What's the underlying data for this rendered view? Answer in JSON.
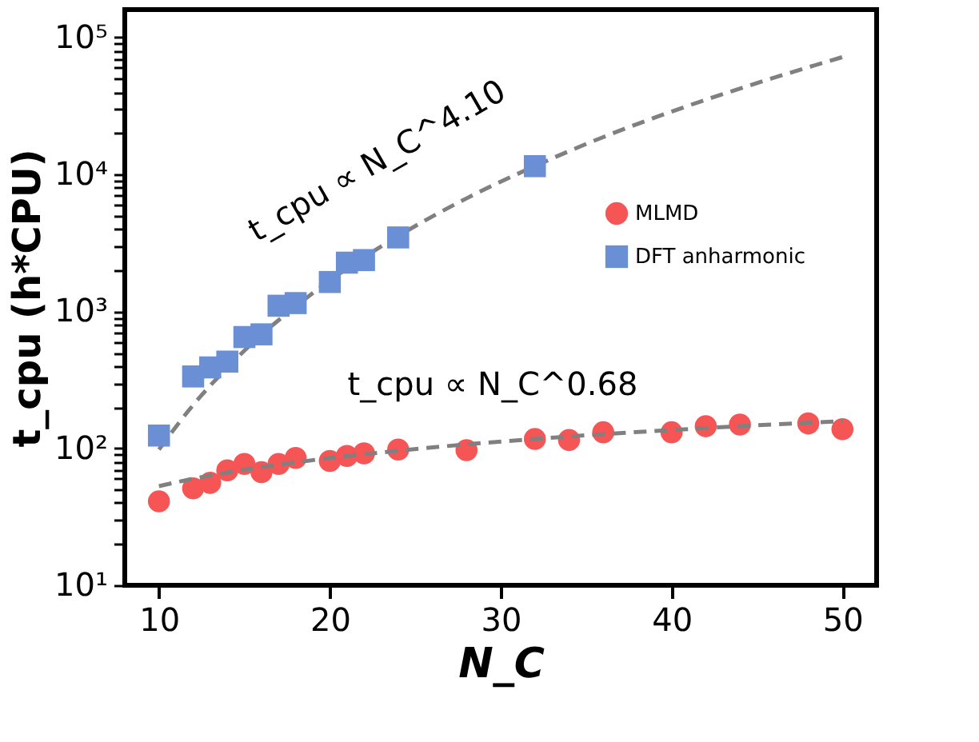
{
  "chart_data": {
    "type": "scatter",
    "xlabel": "N_C",
    "ylabel": "t_cpu (h*CPU)",
    "xlim": [
      8,
      52
    ],
    "xticks": [
      10,
      20,
      30,
      40,
      50
    ],
    "ylim": [
      10,
      160000
    ],
    "log": true,
    "yticks": [
      {
        "value": 10,
        "label": "10¹"
      },
      {
        "value": 20,
        "label": null
      },
      {
        "value": 30,
        "label": null
      },
      {
        "value": 40,
        "label": null
      },
      {
        "value": 50,
        "label": null
      },
      {
        "value": 60,
        "label": null
      },
      {
        "value": 70,
        "label": null
      },
      {
        "value": 80,
        "label": null
      },
      {
        "value": 90,
        "label": null
      },
      {
        "value": 100,
        "label": "10²"
      },
      {
        "value": 200,
        "label": null
      },
      {
        "value": 300,
        "label": null
      },
      {
        "value": 400,
        "label": null
      },
      {
        "value": 500,
        "label": null
      },
      {
        "value": 600,
        "label": null
      },
      {
        "value": 700,
        "label": null
      },
      {
        "value": 800,
        "label": null
      },
      {
        "value": 900,
        "label": null
      },
      {
        "value": 1000,
        "label": "10³"
      },
      {
        "value": 2000,
        "label": null
      },
      {
        "value": 3000,
        "label": null
      },
      {
        "value": 4000,
        "label": null
      },
      {
        "value": 5000,
        "label": null
      },
      {
        "value": 6000,
        "label": null
      },
      {
        "value": 7000,
        "label": null
      },
      {
        "value": 8000,
        "label": null
      },
      {
        "value": 9000,
        "label": null
      },
      {
        "value": 10000,
        "label": "10⁴"
      },
      {
        "value": 20000,
        "label": null
      },
      {
        "value": 30000,
        "label": null
      },
      {
        "value": 40000,
        "label": null
      },
      {
        "value": 50000,
        "label": null
      },
      {
        "value": 60000,
        "label": null
      },
      {
        "value": 70000,
        "label": null
      },
      {
        "value": 80000,
        "label": null
      },
      {
        "value": 90000,
        "label": null
      },
      {
        "value": 100000,
        "label": "10⁵"
      }
    ],
    "grid": false,
    "legend": "right",
    "series": [
      {
        "name": "MLMD",
        "marker": "circle",
        "color": "#f65555",
        "x": [
          10,
          12,
          13,
          14,
          15,
          16,
          17,
          18,
          20,
          21,
          22,
          24,
          28,
          32,
          34,
          36,
          40,
          42,
          44,
          48,
          50
        ],
        "values": [
          41,
          51,
          56,
          69,
          77,
          67,
          77,
          85,
          81,
          88,
          92,
          98,
          97,
          117,
          115,
          131,
          131,
          145,
          149,
          152,
          138
        ]
      },
      {
        "name": "DFT anharmonic",
        "marker": "square",
        "color": "#6a8fd5",
        "x": [
          10,
          12,
          13,
          14,
          15,
          16,
          17,
          18,
          20,
          21,
          22,
          24,
          32
        ],
        "values": [
          124,
          335,
          390,
          430,
          650,
          680,
          1100,
          1150,
          1640,
          2270,
          2370,
          3470,
          11500
        ]
      },
      {
        "type": "line",
        "line_style": "dashed",
        "color": "#808080",
        "x": [
          10,
          12,
          14,
          16,
          18,
          20,
          24,
          28,
          32,
          36,
          40,
          45,
          50
        ],
        "values": [
          98,
          207,
          389,
          674,
          1088,
          1681,
          3550,
          6690,
          11520,
          18750,
          28800,
          46500,
          72000
        ]
      },
      {
        "type": "line",
        "line_style": "dashed",
        "color": "#808080",
        "x": [
          10,
          12,
          14,
          16,
          18,
          20,
          24,
          28,
          32,
          36,
          40,
          45,
          50
        ],
        "values": [
          53,
          60,
          66.6,
          73,
          79,
          85,
          96,
          107,
          117,
          127,
          136,
          147.5,
          158
        ]
      }
    ],
    "annotations": [
      "t_cpu ∝ N_C^4.10",
      "t_cpu ∝ N_C^0.68"
    ]
  }
}
